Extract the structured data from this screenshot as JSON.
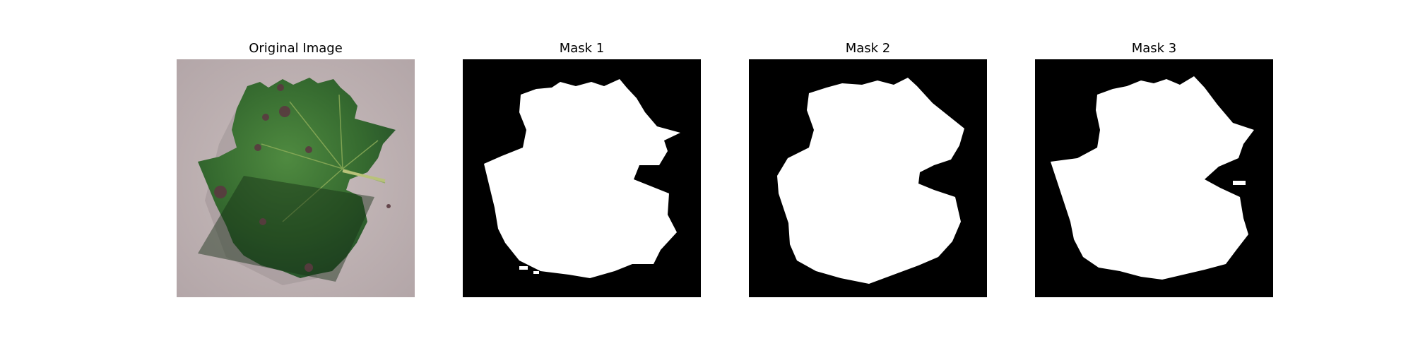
{
  "panels": [
    {
      "title": "Original Image",
      "kind": "photo",
      "subject": "grape-leaf-photo"
    },
    {
      "title": "Mask 1",
      "kind": "mask",
      "background": "#000000",
      "foreground": "#ffffff"
    },
    {
      "title": "Mask 2",
      "kind": "mask",
      "background": "#000000",
      "foreground": "#ffffff"
    },
    {
      "title": "Mask 3",
      "kind": "mask",
      "background": "#000000",
      "foreground": "#ffffff"
    }
  ]
}
